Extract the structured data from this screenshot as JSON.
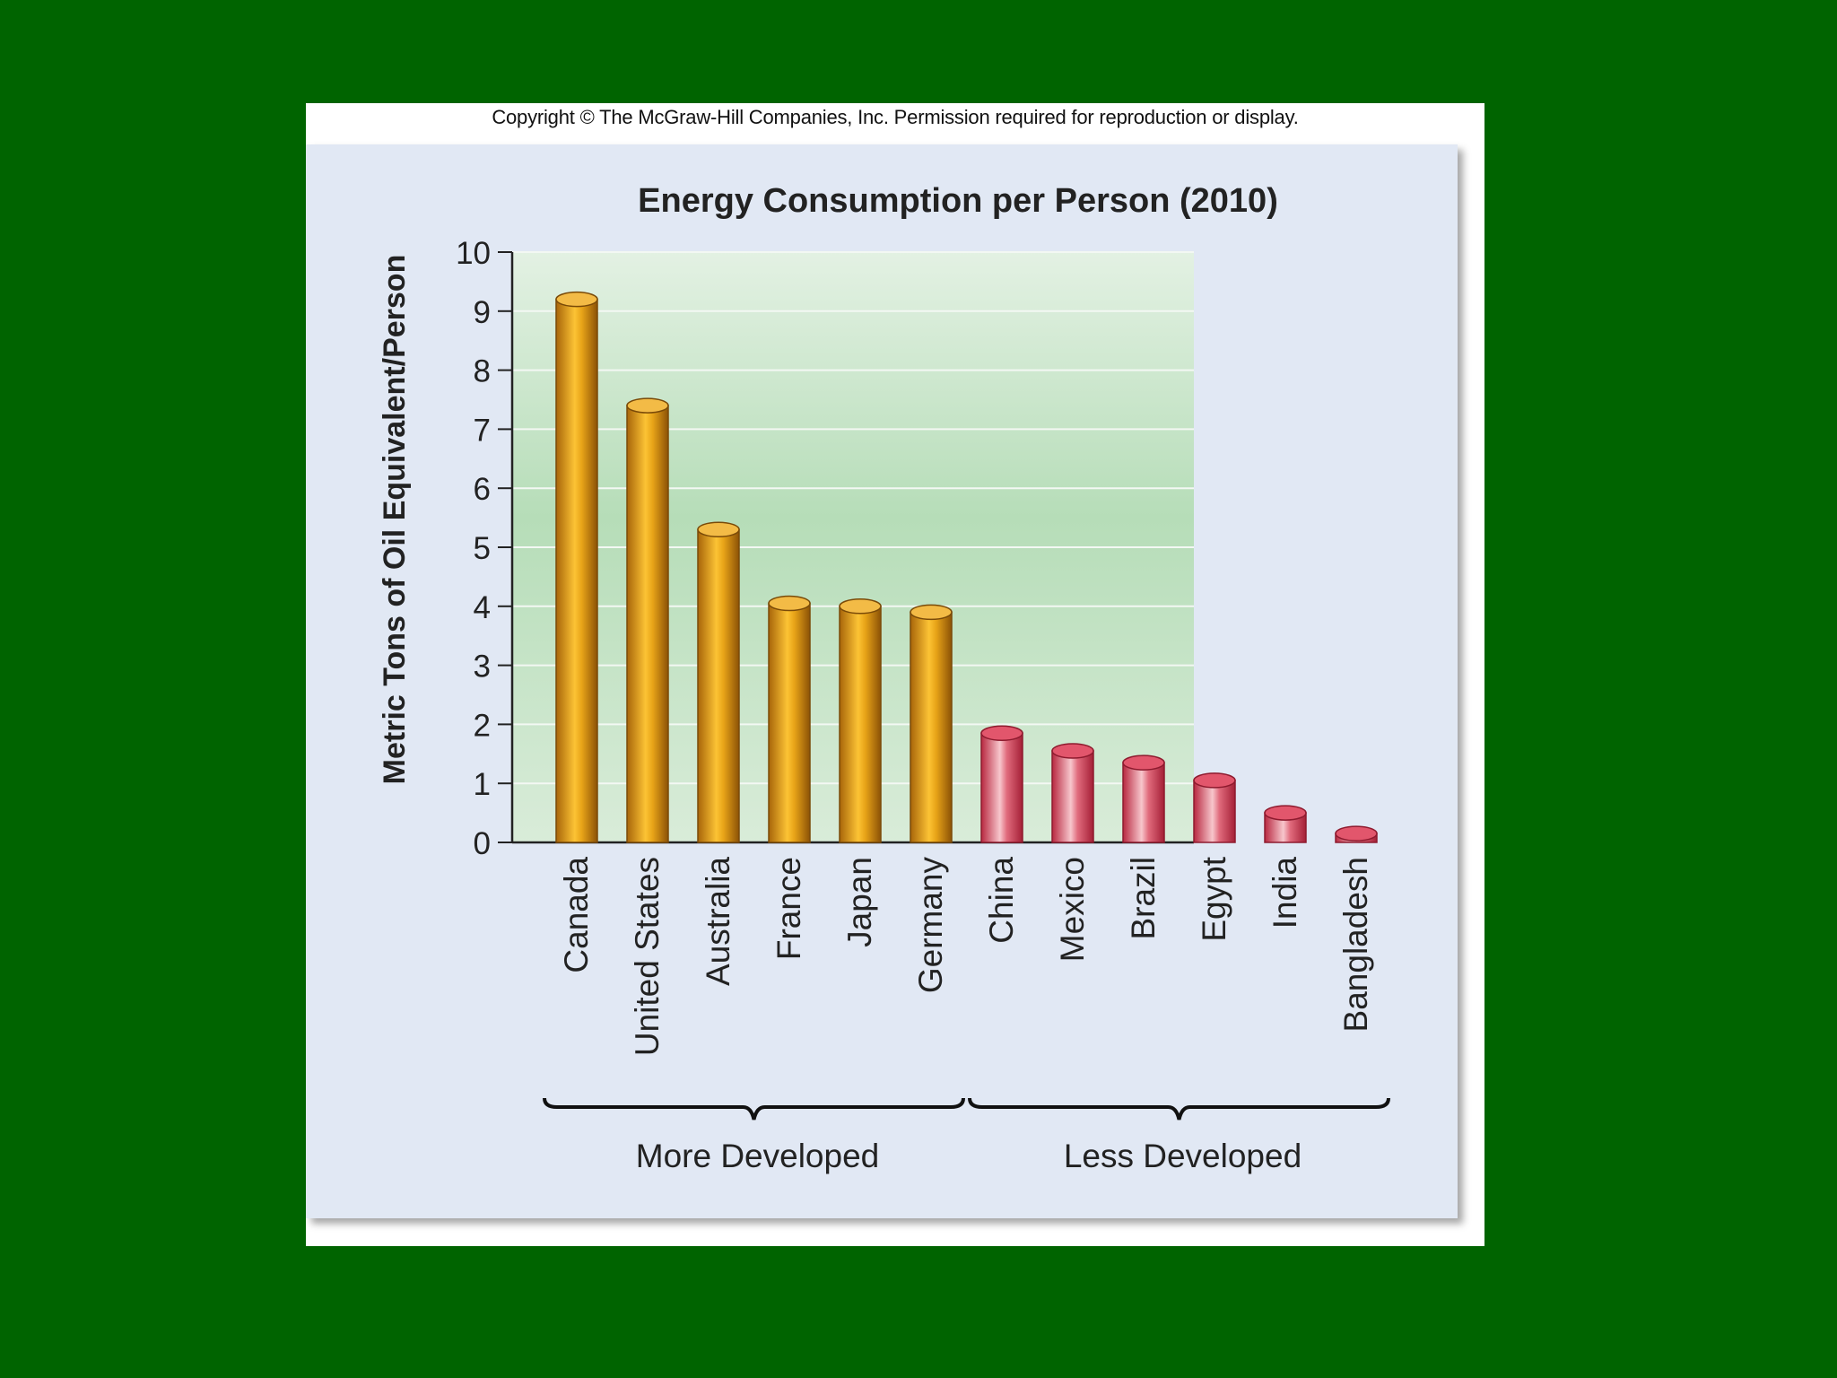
{
  "copyright": "Copyright © The McGraw-Hill Companies, Inc. Permission required for reproduction or display.",
  "colors": {
    "slide_background": "#006400",
    "panel_background": "#e1e8f4",
    "plot_gradient_top": "#e3f1e3",
    "plot_gradient_mid": "#b6ddb8",
    "more_developed_bar": "#e8a418",
    "less_developed_bar": "#d9405a"
  },
  "chart_data": {
    "type": "bar",
    "title": "Energy Consumption per Person (2010)",
    "xlabel": "",
    "ylabel": "Metric Tons of Oil Equivalent/Person",
    "ylim": [
      0,
      10
    ],
    "yticks": [
      "0",
      "1",
      "2",
      "3",
      "4",
      "5",
      "6",
      "7",
      "8",
      "9",
      "10"
    ],
    "grid": true,
    "categories": [
      "Canada",
      "United States",
      "Australia",
      "France",
      "Japan",
      "Germany",
      "China",
      "Mexico",
      "Brazil",
      "Egypt",
      "India",
      "Bangladesh"
    ],
    "values": [
      9.2,
      7.4,
      5.3,
      4.05,
      4.0,
      3.9,
      1.85,
      1.55,
      1.35,
      1.05,
      0.5,
      0.15
    ],
    "groups": [
      {
        "label": "More Developed",
        "start": 0,
        "end": 5,
        "color": "#e8a418"
      },
      {
        "label": "Less Developed",
        "start": 6,
        "end": 11,
        "color": "#d9405a"
      }
    ]
  }
}
